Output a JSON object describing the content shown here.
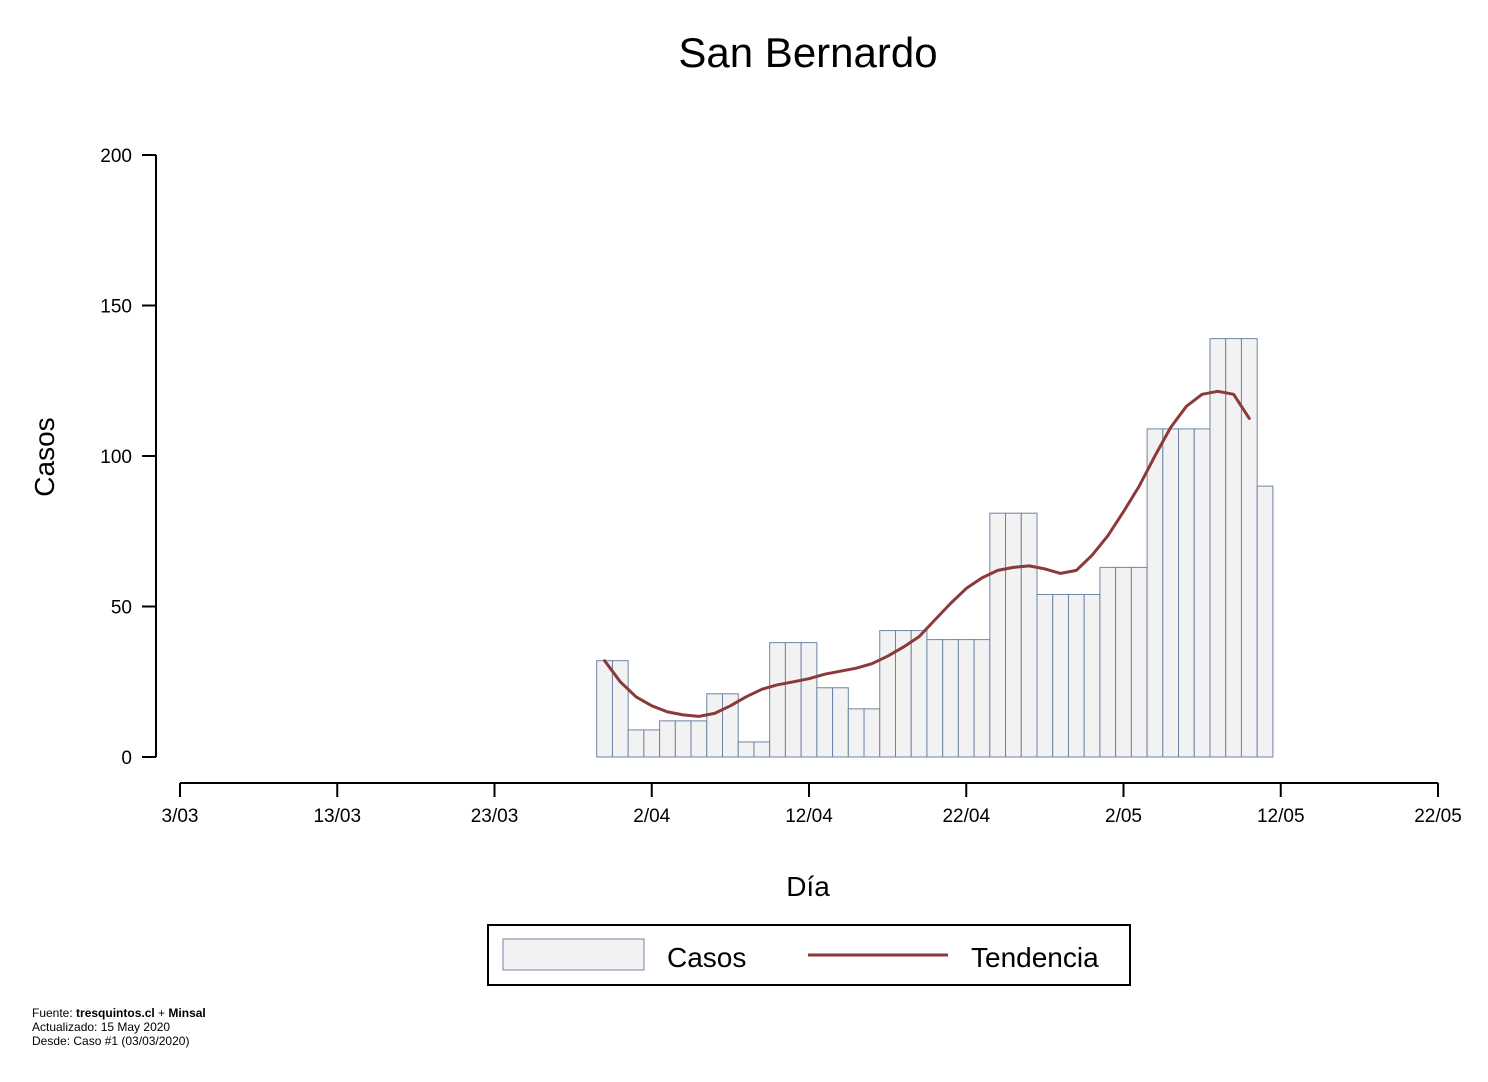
{
  "chart_data": {
    "type": "bar",
    "title": "San Bernardo",
    "xlabel": "Día",
    "ylabel": "Casos",
    "ylim": [
      0,
      200
    ],
    "yticks": [
      0,
      50,
      100,
      150,
      200
    ],
    "xlim": [
      "2020-03-03",
      "2020-05-22"
    ],
    "xticks": [
      "3/03",
      "13/03",
      "23/03",
      "2/04",
      "12/04",
      "22/04",
      "2/05",
      "12/05",
      "22/05"
    ],
    "grid": false,
    "legend_position": "bottom",
    "bar_fill": "#f2f2f2",
    "bar_stroke": "#6f84a6",
    "line_color": "#8b3a3a",
    "series": [
      {
        "name": "Casos",
        "kind": "bar",
        "x": [
          "2020-03-30",
          "2020-03-31",
          "2020-04-01",
          "2020-04-02",
          "2020-04-03",
          "2020-04-04",
          "2020-04-05",
          "2020-04-06",
          "2020-04-07",
          "2020-04-08",
          "2020-04-09",
          "2020-04-10",
          "2020-04-11",
          "2020-04-12",
          "2020-04-13",
          "2020-04-14",
          "2020-04-15",
          "2020-04-16",
          "2020-04-17",
          "2020-04-18",
          "2020-04-19",
          "2020-04-20",
          "2020-04-21",
          "2020-04-22",
          "2020-04-23",
          "2020-04-24",
          "2020-04-25",
          "2020-04-26",
          "2020-04-27",
          "2020-04-28",
          "2020-04-29",
          "2020-04-30",
          "2020-05-01",
          "2020-05-02",
          "2020-05-03",
          "2020-05-04",
          "2020-05-05",
          "2020-05-06",
          "2020-05-07",
          "2020-05-08",
          "2020-05-09",
          "2020-05-10",
          "2020-05-11"
        ],
        "values": [
          32,
          32,
          9,
          9,
          12,
          12,
          12,
          21,
          21,
          5,
          5,
          38,
          38,
          38,
          23,
          23,
          16,
          16,
          42,
          42,
          42,
          39,
          39,
          39,
          39,
          81,
          81,
          81,
          54,
          54,
          54,
          54,
          63,
          63,
          63,
          109,
          109,
          109,
          109,
          139,
          139,
          139,
          90
        ]
      },
      {
        "name": "Tendencia",
        "kind": "line",
        "x": [
          "2020-03-30",
          "2020-03-31",
          "2020-04-01",
          "2020-04-02",
          "2020-04-03",
          "2020-04-04",
          "2020-04-05",
          "2020-04-06",
          "2020-04-07",
          "2020-04-08",
          "2020-04-09",
          "2020-04-10",
          "2020-04-11",
          "2020-04-12",
          "2020-04-13",
          "2020-04-14",
          "2020-04-15",
          "2020-04-16",
          "2020-04-17",
          "2020-04-18",
          "2020-04-19",
          "2020-04-20",
          "2020-04-21",
          "2020-04-22",
          "2020-04-23",
          "2020-04-24",
          "2020-04-25",
          "2020-04-26",
          "2020-04-27",
          "2020-04-28",
          "2020-04-29",
          "2020-04-30",
          "2020-05-01",
          "2020-05-02",
          "2020-05-03",
          "2020-05-04",
          "2020-05-05",
          "2020-05-06",
          "2020-05-07",
          "2020-05-08",
          "2020-05-09",
          "2020-05-10",
          "2020-05-11"
        ],
        "values": [
          32,
          25,
          20,
          17,
          15,
          14,
          13.5,
          14.5,
          17,
          20,
          22.5,
          24,
          25,
          26,
          27.5,
          28.5,
          29.5,
          31,
          33.5,
          36.5,
          40,
          45.5,
          51,
          56,
          59.5,
          62,
          63,
          63.5,
          62.5,
          61,
          62,
          67,
          73.5,
          81.5,
          90,
          100,
          109.5,
          116.5,
          120.5,
          121.5,
          120.5,
          112.5,
          null
        ]
      }
    ]
  },
  "footer": {
    "source_prefix": "Fuente: ",
    "source_site": "tresquintos.cl",
    "source_joiner": " + ",
    "source_org": "Minsal",
    "updated": "Actualizado: 15 May 2020",
    "since": "Desde: Caso #1  (03/03/2020)"
  }
}
